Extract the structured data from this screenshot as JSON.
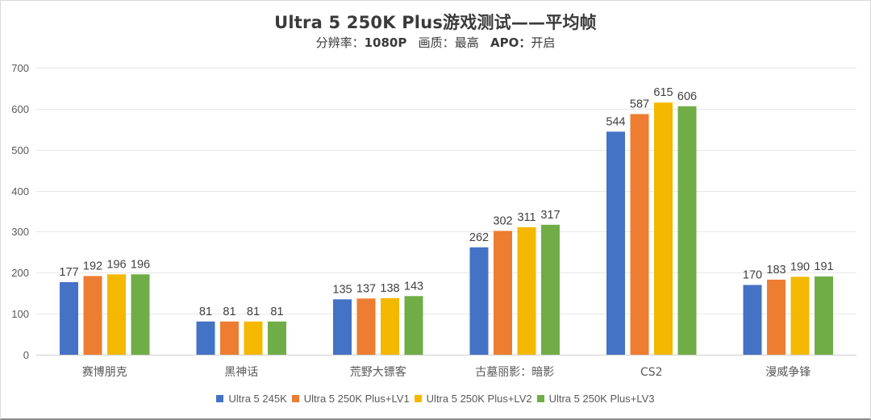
{
  "chart_data": {
    "type": "bar",
    "title": "Ultra 5 250K Plus游戏测试——平均帧",
    "subtitle": {
      "resolution_label": "分辨率：",
      "resolution_value": "1080P",
      "quality_label": "画质：",
      "quality_value": "最高",
      "apo_label": "APO：",
      "apo_value": "开启"
    },
    "xlabel": "",
    "ylabel": "",
    "ylim": [
      0,
      700
    ],
    "yticks": [
      0,
      100,
      200,
      300,
      400,
      500,
      600,
      700
    ],
    "grid": true,
    "legend_position": "bottom",
    "categories": [
      "赛博朋克",
      "黑神话",
      "荒野大镖客",
      "古墓丽影：暗影",
      "CS2",
      "漫威争锋"
    ],
    "series": [
      {
        "name": "Ultra 5 245K",
        "color": "#4472c4",
        "values": [
          177,
          81,
          135,
          262,
          544,
          170
        ]
      },
      {
        "name": "Ultra 5 250K Plus+LV1",
        "color": "#ed7d31",
        "values": [
          192,
          81,
          137,
          302,
          587,
          183
        ]
      },
      {
        "name": "Ultra 5 250K Plus+LV2",
        "color": "#f4b800",
        "values": [
          196,
          81,
          138,
          311,
          615,
          190
        ]
      },
      {
        "name": "Ultra 5 250K Plus+LV3",
        "color": "#70ad47",
        "values": [
          196,
          81,
          143,
          317,
          606,
          191
        ]
      }
    ]
  }
}
